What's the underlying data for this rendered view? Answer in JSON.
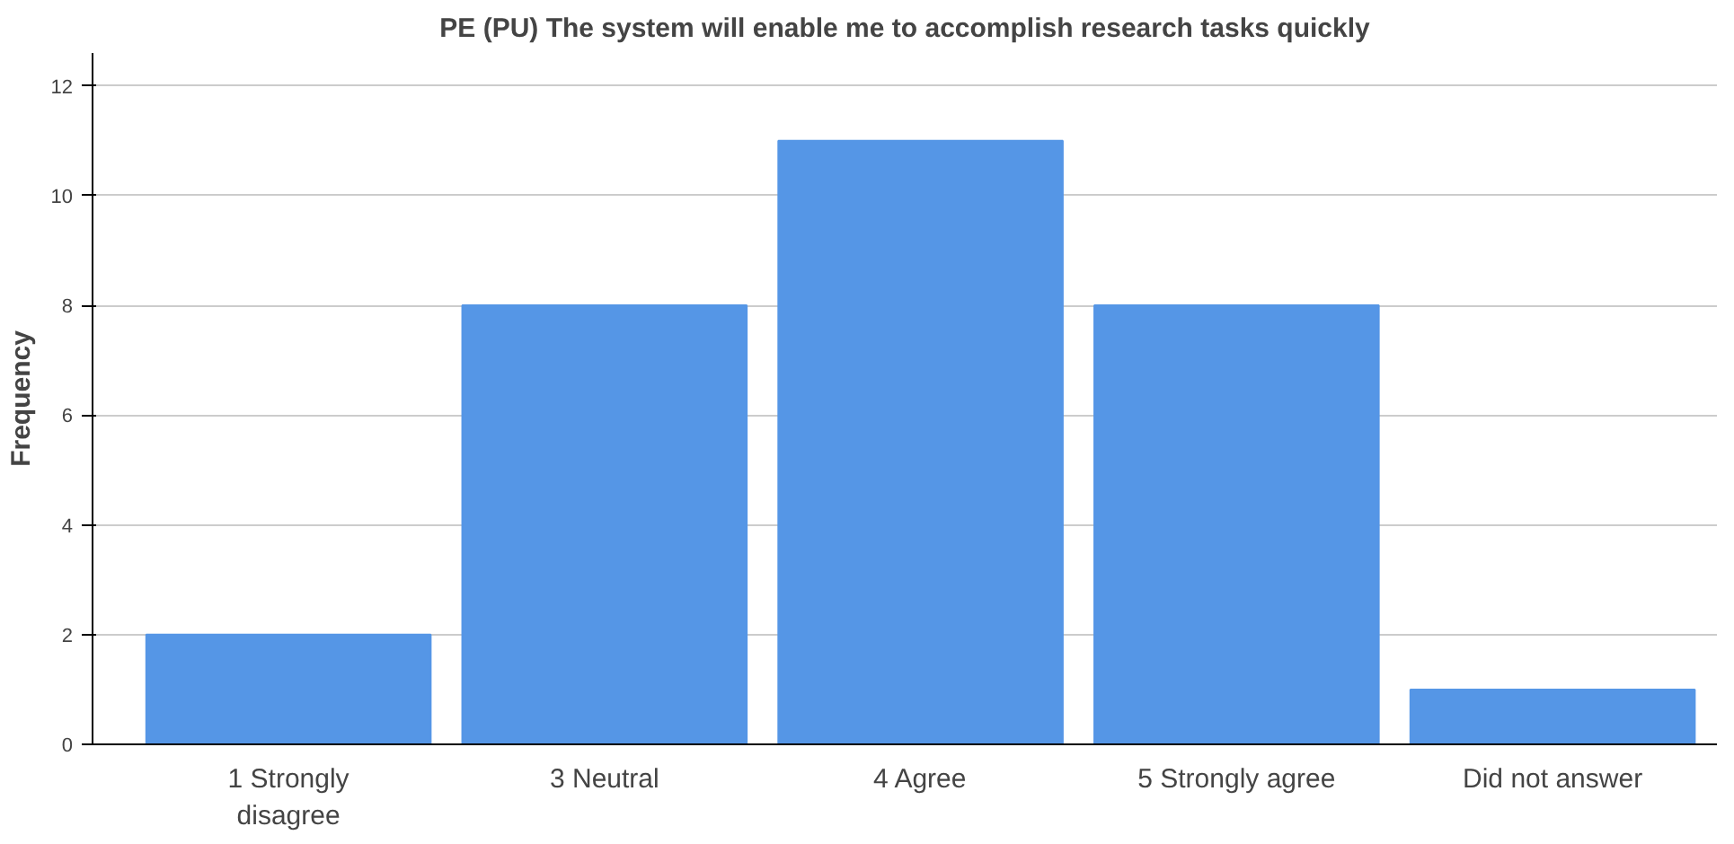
{
  "chart_data": {
    "type": "bar",
    "title": "PE (PU) The system will enable me to accomplish research tasks quickly",
    "ylabel": "Frequency",
    "categories": [
      "1 Strongly disagree",
      "3 Neutral",
      "4 Agree",
      "5 Strongly agree",
      "Did not answer"
    ],
    "values": [
      2,
      8,
      11,
      8,
      1
    ],
    "color": "#5596e6",
    "ylim": [
      0,
      12.6
    ],
    "yticks": [
      0,
      2,
      4,
      6,
      8,
      10,
      12
    ],
    "grid": "y"
  }
}
